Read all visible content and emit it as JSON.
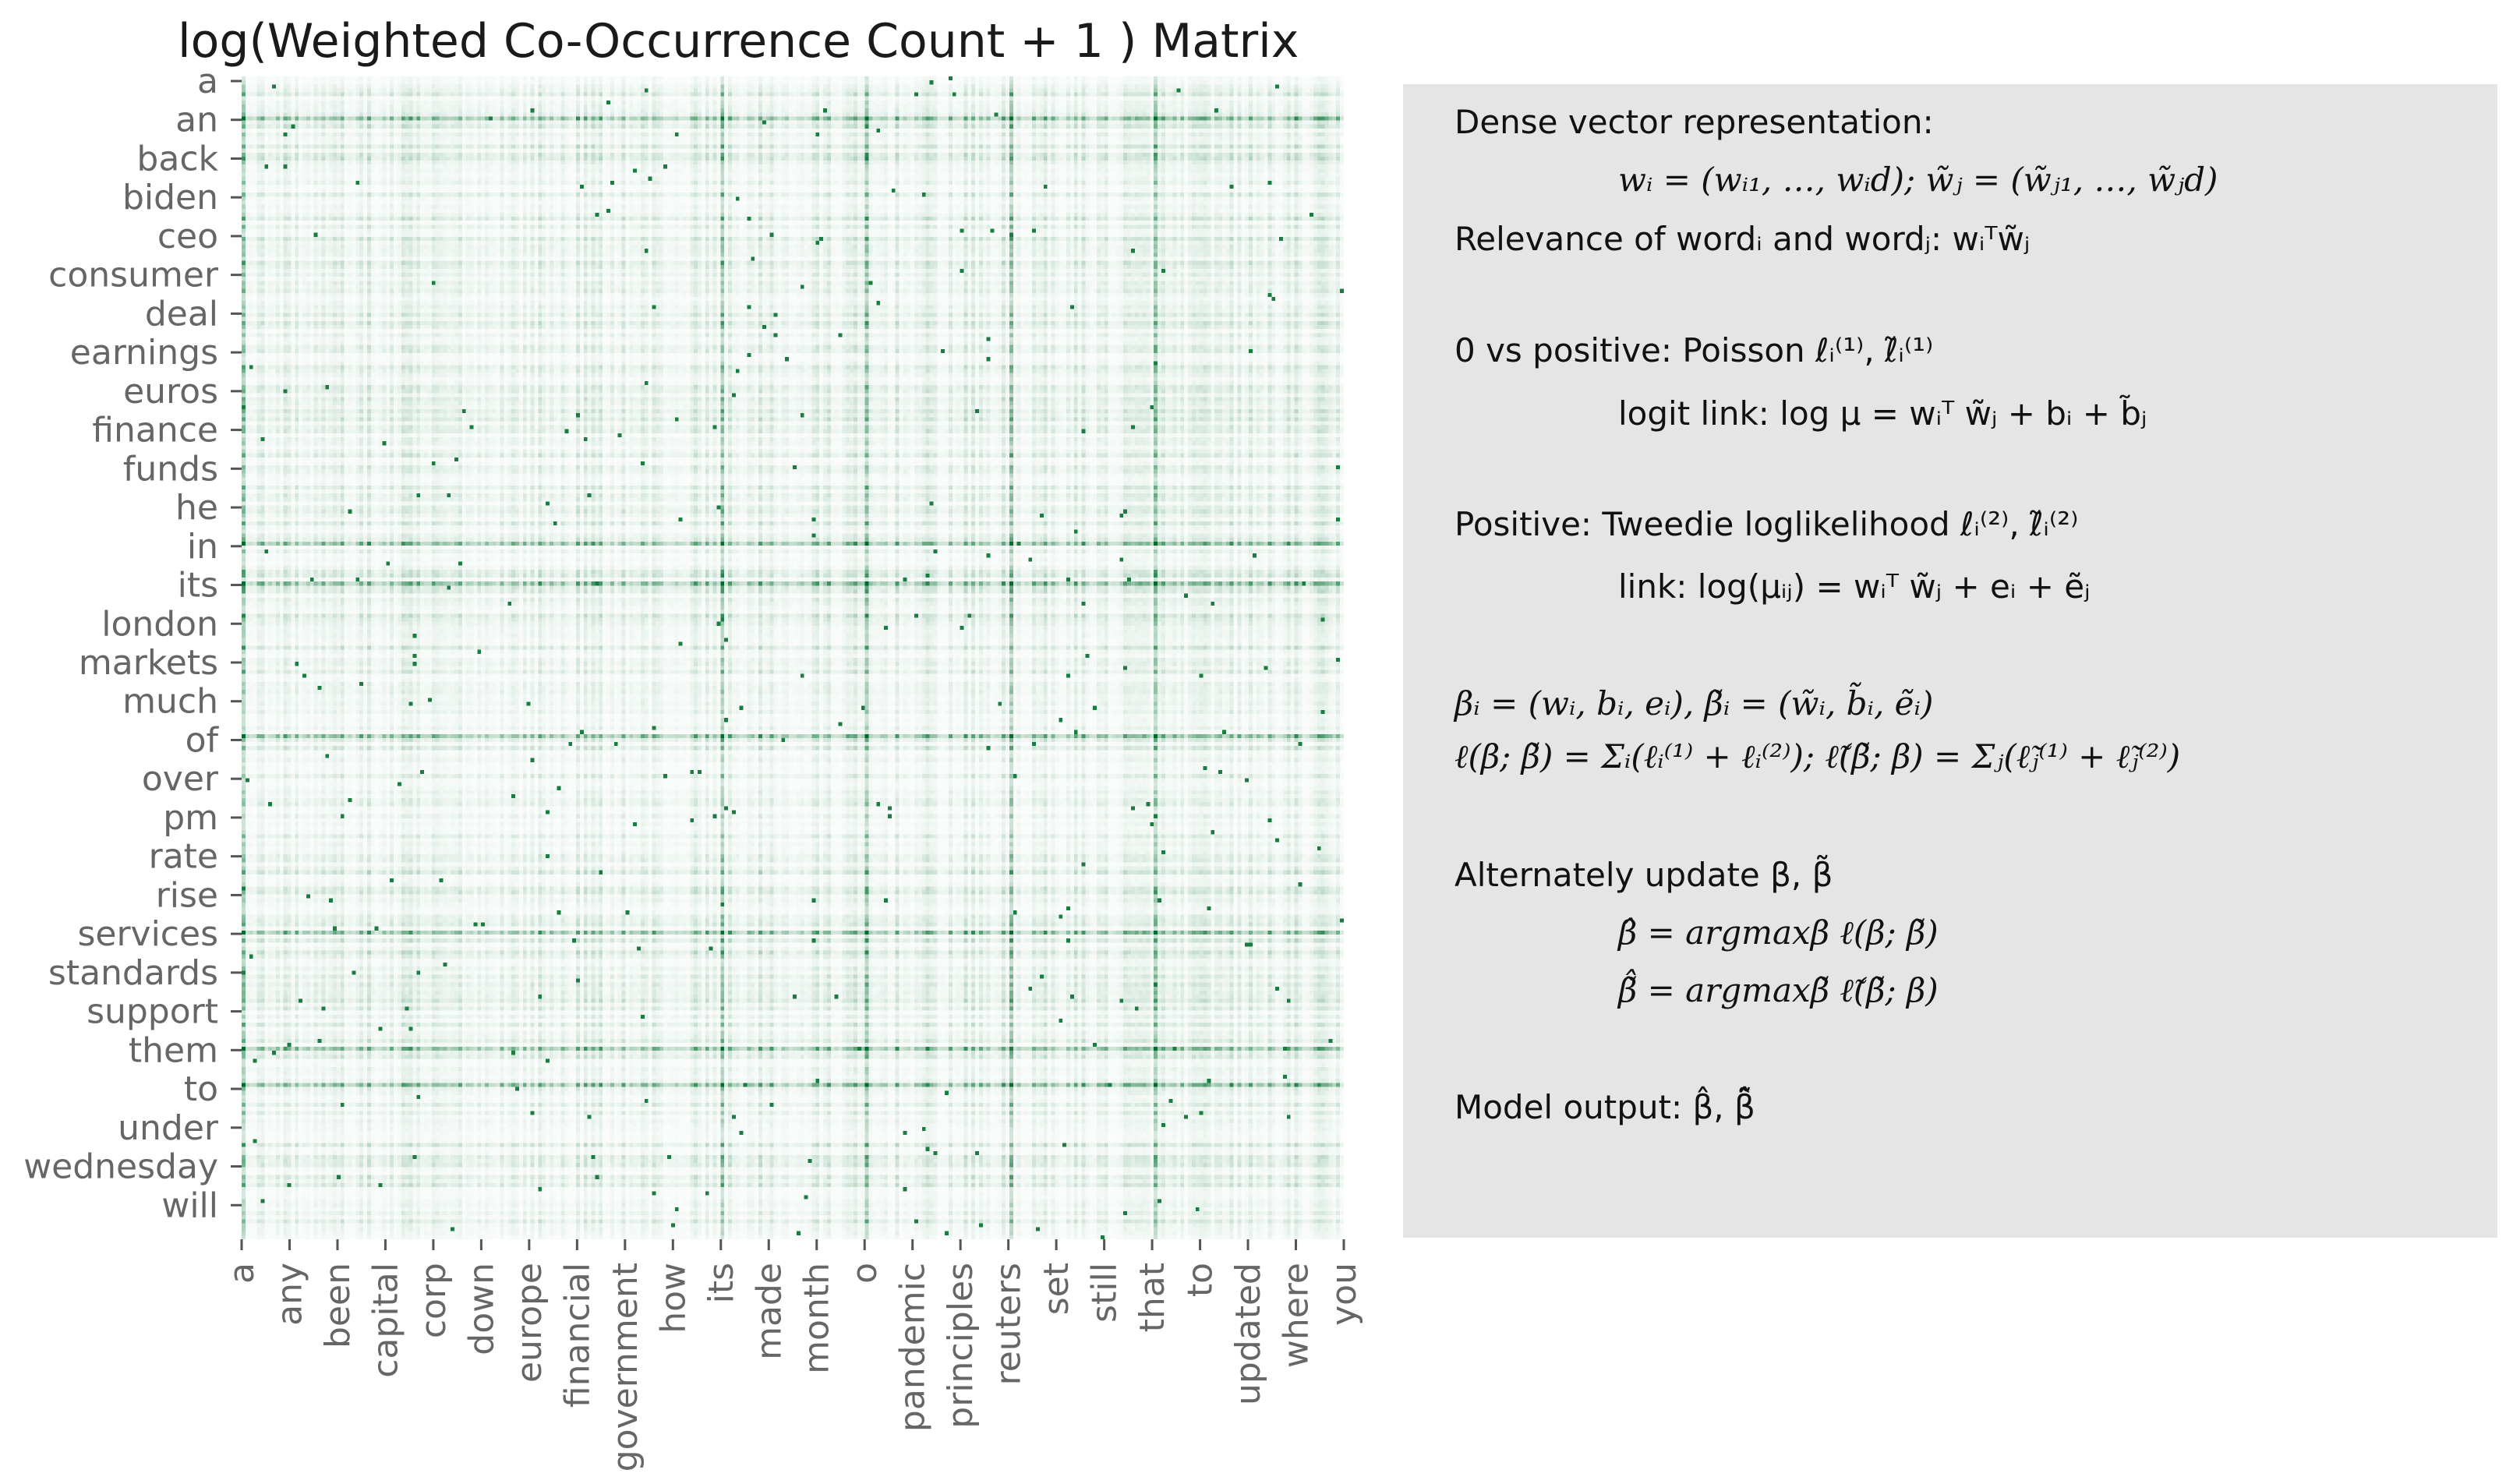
{
  "chart_data": {
    "type": "heatmap",
    "title": "log(Weighted Co-Occurrence Count + 1 ) Matrix",
    "colormap": {
      "low": "#ffffff",
      "high": "#006d2c"
    },
    "n_rows": 290,
    "n_cols": 290,
    "row_tick_labels": [
      "a",
      "an",
      "back",
      "biden",
      "ceo",
      "consumer",
      "deal",
      "earnings",
      "euros",
      "finance",
      "funds",
      "he",
      "in",
      "its",
      "london",
      "markets",
      "much",
      "of",
      "over",
      "pm",
      "rate",
      "rise",
      "services",
      "standards",
      "support",
      "them",
      "to",
      "under",
      "wednesday",
      "will"
    ],
    "col_tick_labels": [
      "a",
      "any",
      "been",
      "capital",
      "corp",
      "down",
      "europe",
      "financial",
      "government",
      "how",
      "its",
      "made",
      "month",
      "o",
      "pandemic",
      "principles",
      "reuters",
      "set",
      "still",
      "that",
      "to",
      "updated",
      "where",
      "you"
    ],
    "dense_row_labels": [
      "an",
      "in",
      "its",
      "of",
      "services",
      "them",
      "to"
    ],
    "dense_col_labels": [
      "a",
      "its",
      "o",
      "reuters",
      "that"
    ],
    "xlabel": "",
    "ylabel": ""
  },
  "panel": {
    "lines": [
      "Dense vector representation:",
      "wᵢ = (wᵢ₁, …, wᵢd);    w̃ⱼ = (w̃ⱼ₁, …, w̃ⱼd)",
      "Relevance of wordᵢ and wordⱼ: wᵢᵀw̃ⱼ",
      "0 vs positive: Poisson ℓᵢ⁽¹⁾, ℓ̃ᵢ⁽¹⁾",
      "logit link: log μ = wᵢᵀ w̃ⱼ + bᵢ + b̃ⱼ",
      "Positive: Tweedie loglikelihood ℓᵢ⁽²⁾, ℓ̃ᵢ⁽²⁾",
      "link: log(μᵢⱼ) = wᵢᵀ w̃ⱼ + eᵢ + ẽⱼ",
      "βᵢ = (wᵢ, bᵢ, eᵢ),       β̃ᵢ = (w̃ᵢ, b̃ᵢ, ẽᵢ)",
      "ℓ(β; β̃) = Σᵢ(ℓᵢ⁽¹⁾ + ℓᵢ⁽²⁾);    ℓ̃(β̃; β) = Σⱼ(ℓ̃ⱼ⁽¹⁾ + ℓ̃ⱼ⁽²⁾)",
      "Alternately update β, β̃",
      "β̂ = argmaxβ   ℓ(β; β̃)",
      "β̃̂ = argmaxβ̃   ℓ̃(β̃; β)",
      "Model output: β̂,    β̃̂"
    ]
  }
}
